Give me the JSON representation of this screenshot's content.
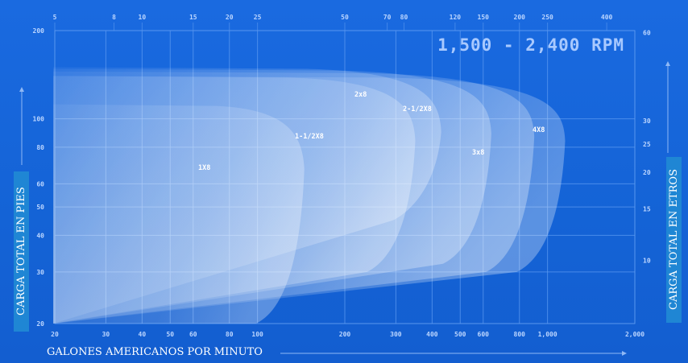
{
  "chart_data": {
    "type": "area",
    "title": "1,500 - 2,400 RPM",
    "xlabel": "GALONES AMERICANOS POR MINUTO",
    "ylabel": "CARGA TOTAL EN PIES",
    "y2label": "CARGA TOTAL EN ETROS",
    "x_scale": "log",
    "y_scale": "log",
    "xlim": [
      20,
      2000
    ],
    "ylim": [
      20,
      200
    ],
    "grid": true,
    "x_ticks": [
      "20",
      "30",
      "40",
      "50",
      "60",
      "80",
      "100",
      "200",
      "300",
      "400",
      "500",
      "600",
      "800",
      "1,000",
      "2,000"
    ],
    "y_ticks": [
      "20",
      "30",
      "40",
      "50",
      "60",
      "80",
      "100",
      "200"
    ],
    "x2_ticks": [
      "5",
      "8",
      "10",
      "15",
      "20",
      "25",
      "50",
      "70",
      "80",
      "120",
      "150",
      "200",
      "250",
      "400"
    ],
    "y2_ticks": [
      "10",
      "15",
      "20",
      "25",
      "30",
      "60"
    ],
    "series": [
      {
        "name": "1X8",
        "head_max_ft": 112,
        "flow_max_gpm": 145,
        "head_min_ft": 20
      },
      {
        "name": "1-1/2X8",
        "head_max_ft": 140,
        "flow_max_gpm": 350,
        "head_min_ft": 30
      },
      {
        "name": "2x8",
        "head_max_ft": 150,
        "flow_max_gpm": 430,
        "head_min_ft": 45
      },
      {
        "name": "2-1/2X8",
        "head_max_ft": 148,
        "flow_max_gpm": 640,
        "head_min_ft": 32
      },
      {
        "name": "3x8",
        "head_max_ft": 145,
        "flow_max_gpm": 900,
        "head_min_ft": 30
      },
      {
        "name": "4X8",
        "head_max_ft": 140,
        "flow_max_gpm": 1150,
        "head_min_ft": 30
      }
    ]
  },
  "colors": {
    "background": "#1565d8",
    "grid": "#5c9af0",
    "curve_fill": "#ffffff",
    "axis_title_bg": "#1f86d4"
  }
}
